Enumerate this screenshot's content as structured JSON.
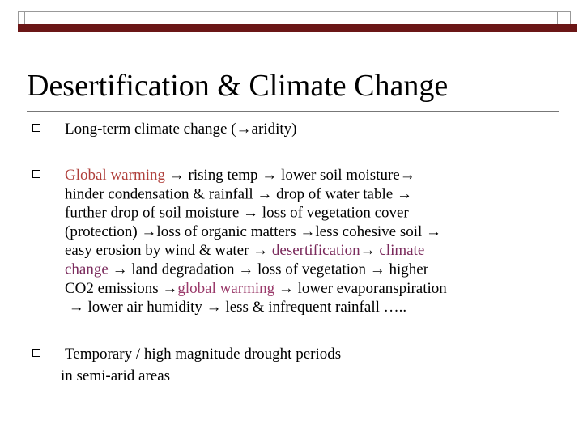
{
  "title": "Desertification & Climate Change",
  "bullets": [
    {
      "lines": [
        [
          {
            "text": "Long-term climate change (→aridity)"
          }
        ]
      ]
    },
    {
      "lines": [
        [
          {
            "text": "Global warming",
            "color": "#b0403c"
          },
          {
            "text": " → rising temp → lower soil moisture→"
          }
        ],
        [
          {
            "text": "hinder condensation & rainfall → drop of water table →"
          }
        ],
        [
          {
            "text": "further drop of soil moisture → loss of vegetation cover"
          }
        ],
        [
          {
            "text": "(protection) →loss of organic matters →less cohesive soil →"
          }
        ],
        [
          {
            "text": "easy erosion by wind & water → "
          },
          {
            "text": "desertification",
            "color": "#7a2a5c"
          },
          {
            "text": "→ "
          },
          {
            "text": "climate",
            "color": "#7a2a5c"
          }
        ],
        [
          {
            "text": "change",
            "color": "#7a2a5c"
          },
          {
            "text": " → land degradation → loss of vegetation → higher"
          }
        ],
        [
          {
            "text": "CO2 emissions →"
          },
          {
            "text": "global warming",
            "color": "#9a3a6a"
          },
          {
            "text": " → lower evaporanspiration"
          }
        ],
        [
          {
            "text": " → lower air humidity → less & infrequent rainfall ….."
          }
        ]
      ]
    },
    {
      "lines": [
        [
          {
            "text": "Temporary / high magnitude drought periods"
          }
        ],
        [
          {
            "text": "in semi-arid areas"
          }
        ]
      ]
    }
  ]
}
